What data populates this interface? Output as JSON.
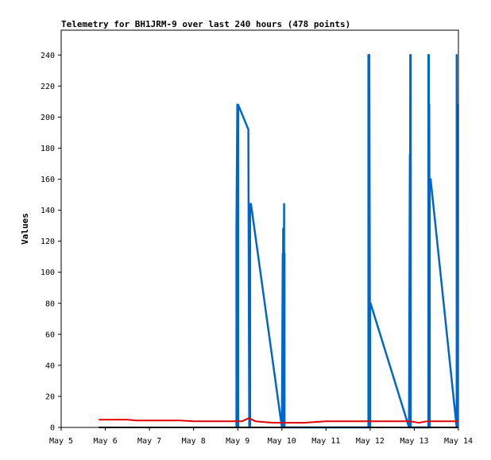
{
  "chart_data": {
    "type": "line",
    "title": "Telemetry for BH1JRM-9 over last 240 hours (478 points)",
    "xlabel": "",
    "ylabel": "Values",
    "x_ticks": [
      "May 5",
      "May 6",
      "May 7",
      "May 8",
      "May 9",
      "May 10",
      "May 11",
      "May 12",
      "May 13",
      "May 14"
    ],
    "xlim": [
      0,
      9
    ],
    "y_ticks": [
      0,
      20,
      40,
      60,
      80,
      100,
      120,
      140,
      160,
      180,
      200,
      220,
      240
    ],
    "ylim": [
      0,
      256
    ],
    "grid": false,
    "legend": "none",
    "series": [
      {
        "color": "#0066cc",
        "x": [
          3.97,
          3.97,
          3.99,
          4.01,
          4.01,
          4.24,
          4.26,
          4.26,
          4.27,
          4.27,
          4.28,
          4.28,
          4.3,
          5.0,
          5.02,
          5.02,
          5.03,
          5.03,
          5.05,
          5.05,
          5.06,
          5.06,
          5.07,
          6.96,
          6.96,
          6.97,
          6.97,
          6.98,
          6.98,
          7.0,
          7.0,
          7.01,
          7.88,
          7.9,
          7.9,
          7.91,
          7.91,
          7.92,
          7.92,
          7.94,
          8.32,
          8.32,
          8.33,
          8.33,
          8.34,
          8.34,
          8.35,
          8.35,
          8.37,
          8.96,
          8.96,
          8.97,
          8.97,
          8.98
        ],
        "y": [
          0,
          128,
          208,
          0,
          208,
          192,
          0,
          144,
          0,
          144,
          0,
          144,
          144,
          0,
          112,
          0,
          128,
          0,
          144,
          0,
          112,
          0,
          0,
          0,
          240,
          0,
          208,
          0,
          240,
          0,
          80,
          80,
          0,
          176,
          0,
          240,
          0,
          240,
          0,
          0,
          0,
          240,
          0,
          240,
          0,
          208,
          0,
          160,
          160,
          0,
          240,
          0,
          208,
          0
        ]
      },
      {
        "color": "#e00000",
        "x": [
          0.85,
          1.1,
          1.5,
          1.7,
          2.0,
          2.4,
          2.5,
          2.7,
          3.0,
          3.5,
          3.9,
          4.1,
          4.25,
          4.4,
          4.6,
          4.8,
          5.1,
          5.5,
          6.0,
          6.5,
          7.0,
          7.5,
          7.9,
          8.1,
          8.3,
          8.6,
          9.0
        ],
        "y": [
          5,
          5,
          5,
          4.5,
          4.5,
          4.5,
          4.5,
          4.5,
          4,
          4,
          4,
          4,
          6,
          4,
          3.5,
          3,
          3,
          3,
          4,
          4,
          4,
          4,
          4,
          3,
          4,
          4,
          4
        ]
      },
      {
        "color": "#000000",
        "x": [
          0.85,
          9.0
        ],
        "y": [
          0,
          0
        ]
      }
    ]
  }
}
